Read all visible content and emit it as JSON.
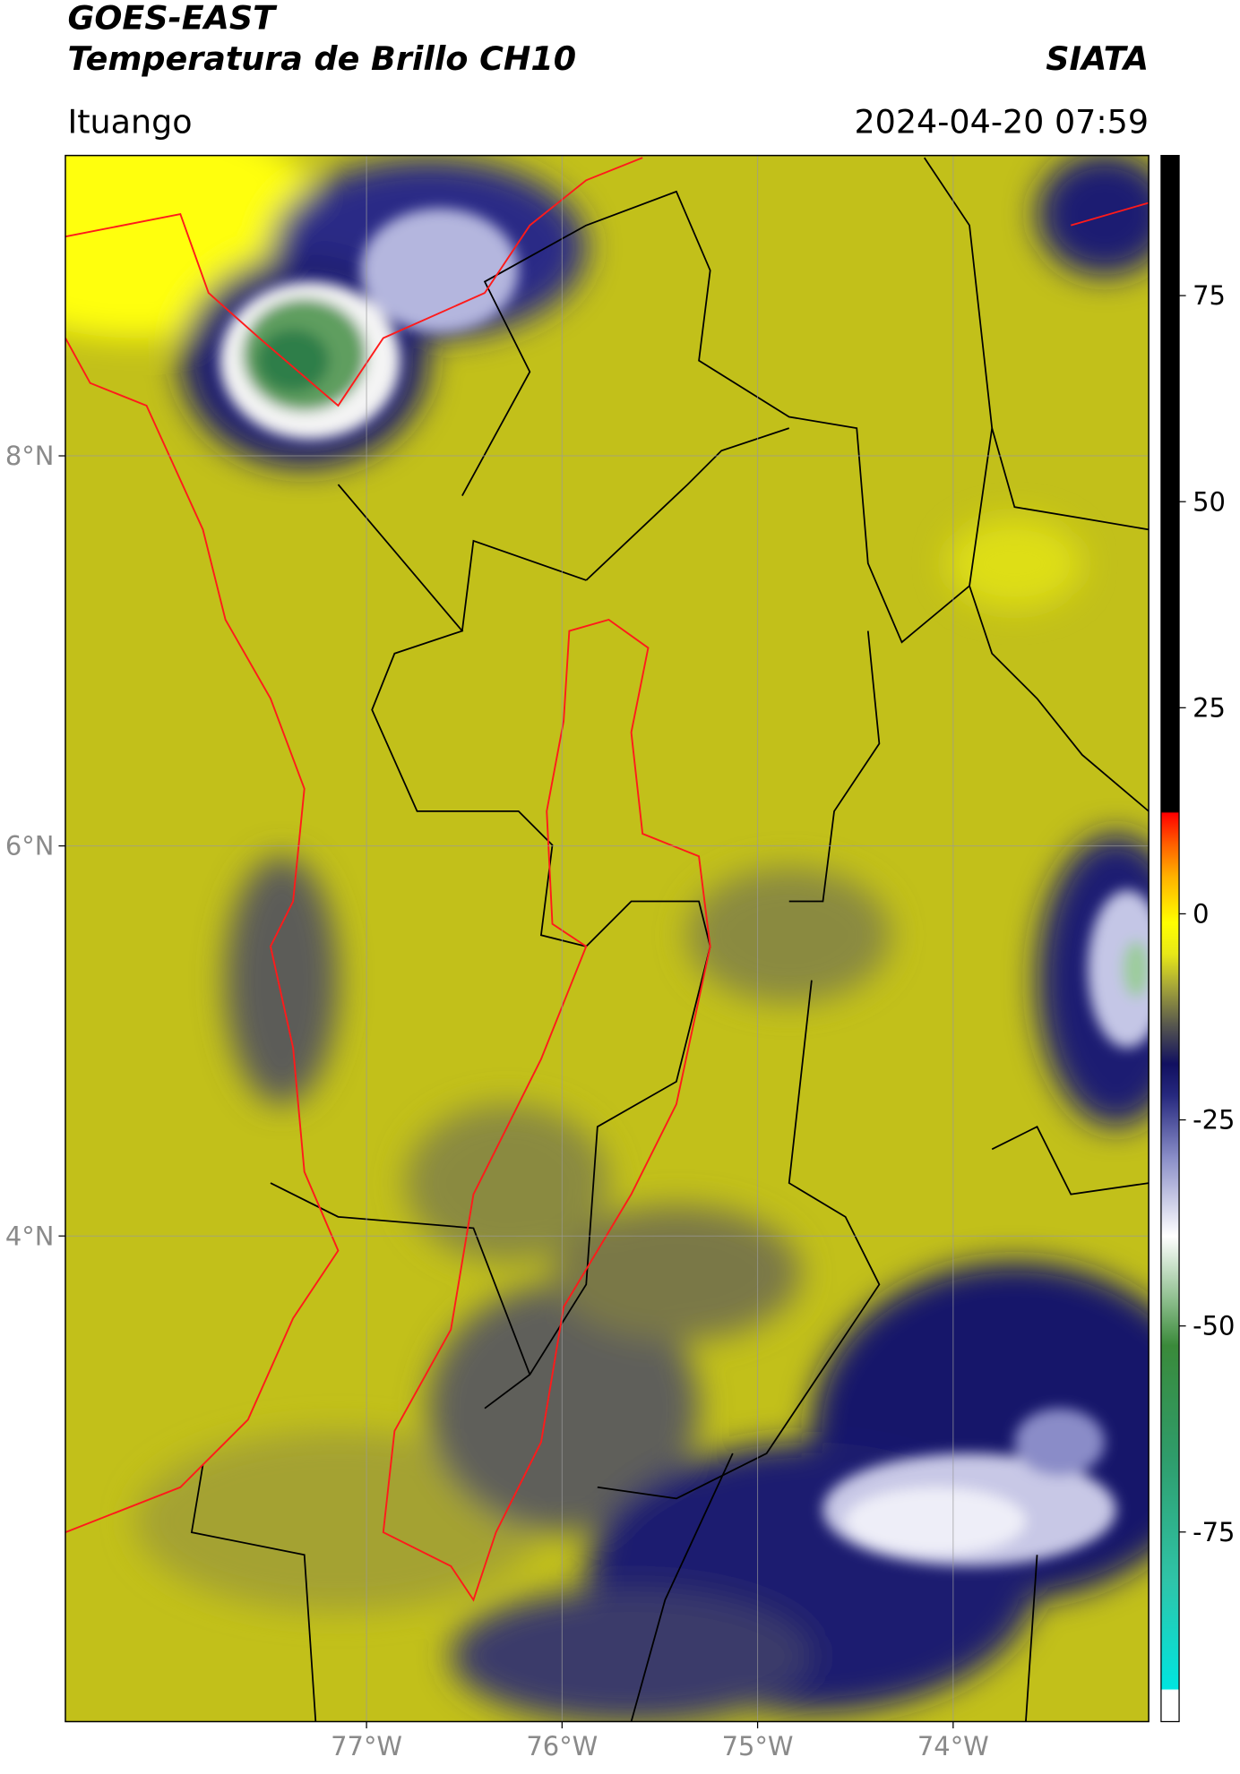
{
  "header": {
    "title": "GOES-EAST",
    "subtitle": "Temperatura de Brillo CH10",
    "source": "SIATA",
    "location": "Ituango",
    "datetime": "2024-04-20 07:59"
  },
  "map": {
    "lon_lim": [
      -78.54,
      -73.0
    ],
    "lat_lim": [
      1.51,
      9.54
    ],
    "lon_ticks": [
      {
        "value": -77,
        "label": "77°W"
      },
      {
        "value": -76,
        "label": "76°W"
      },
      {
        "value": -75,
        "label": "75°W"
      },
      {
        "value": -74,
        "label": "74°W"
      }
    ],
    "lat_ticks": [
      {
        "value": 8,
        "label": "8°N"
      },
      {
        "value": 6,
        "label": "6°N"
      },
      {
        "value": 4,
        "label": "4°N"
      }
    ],
    "grid": true
  },
  "colorbar": {
    "lim": [
      -98,
      92
    ],
    "ticks": [
      75,
      50,
      25,
      0,
      -25,
      -50,
      -75
    ]
  }
}
